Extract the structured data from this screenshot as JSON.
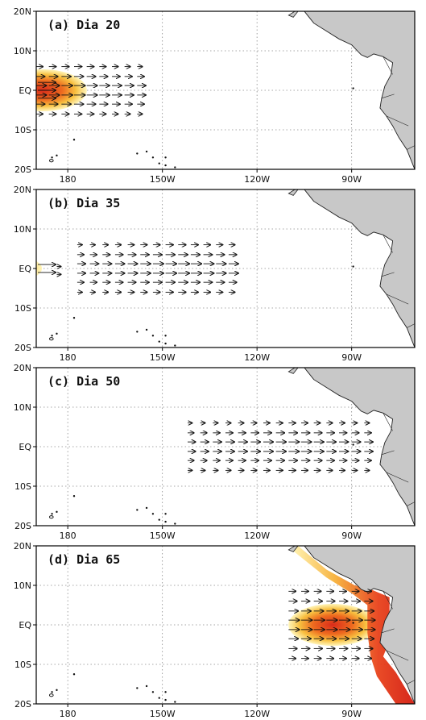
{
  "figure": {
    "lat_ticks": [
      "20N",
      "10N",
      "EQ",
      "10S",
      "20S"
    ],
    "lon_ticks": [
      "180",
      "150W",
      "120W",
      "90W"
    ],
    "colors": {
      "land": "#c8c8c8",
      "coast": "#222222",
      "grid": "#8a8a8a",
      "anomaly_low": "#fff3b0",
      "anomaly_mid": "#f5a623",
      "anomaly_high": "#d92b1b",
      "arrow": "#111111"
    },
    "panels": [
      {
        "label": "(a) Dia 20",
        "anomaly_center_lon": 172,
        "region": "western-pacific"
      },
      {
        "label": "(b) Dia 35",
        "anomaly_center_lon": 145,
        "region": "central-pacific"
      },
      {
        "label": "(c) Dia 50",
        "anomaly_center_lon": 110,
        "region": "eastern-pacific"
      },
      {
        "label": "(d) Dia 65",
        "anomaly_center_lon": 82,
        "region": "south-american-coast"
      }
    ]
  }
}
